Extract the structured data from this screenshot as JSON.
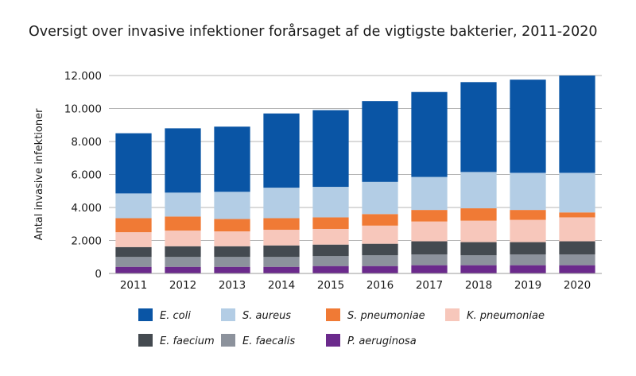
{
  "chart_data": {
    "type": "bar",
    "stacked": true,
    "title": "Oversigt over invasive infektioner forårsaget af de vigtigste bakterier, 2011-2020",
    "xlabel": "",
    "ylabel": "Antal invasive infektioner",
    "ylim": [
      0,
      12000
    ],
    "yticks": [
      0,
      2000,
      4000,
      6000,
      8000,
      10000,
      12000
    ],
    "ytick_labels": [
      "0",
      "2.000",
      "4.000",
      "6.000",
      "8.000",
      "10.000",
      "12.000"
    ],
    "grid": true,
    "legend_position": "bottom",
    "categories": [
      "2011",
      "2012",
      "2013",
      "2014",
      "2015",
      "2016",
      "2017",
      "2018",
      "2019",
      "2020"
    ],
    "series": [
      {
        "name": "P. aeruginosa",
        "color": "#6b2a8c",
        "values": [
          400,
          400,
          400,
          400,
          450,
          450,
          500,
          500,
          500,
          500
        ]
      },
      {
        "name": "E. faecalis",
        "color": "#8c929c",
        "values": [
          600,
          600,
          600,
          600,
          600,
          650,
          650,
          600,
          650,
          650
        ]
      },
      {
        "name": "E. faecium",
        "color": "#444a50",
        "values": [
          600,
          650,
          650,
          700,
          700,
          700,
          800,
          800,
          750,
          800
        ]
      },
      {
        "name": "K. pneumoniae",
        "color": "#f7c7bb",
        "values": [
          900,
          950,
          900,
          950,
          950,
          1100,
          1200,
          1300,
          1350,
          1450
        ]
      },
      {
        "name": "S. pneumoniae",
        "color": "#f07a35",
        "values": [
          850,
          850,
          750,
          700,
          700,
          700,
          700,
          750,
          600,
          300
        ]
      },
      {
        "name": "S. aureus",
        "color": "#b3cde5",
        "values": [
          1500,
          1450,
          1650,
          1850,
          1850,
          1950,
          2000,
          2200,
          2250,
          2400
        ]
      },
      {
        "name": "E. coli",
        "color": "#0a55a5",
        "values": [
          3650,
          3900,
          3950,
          4500,
          4650,
          4900,
          5150,
          5450,
          5650,
          5900
        ]
      }
    ],
    "legend_order": [
      "E. coli",
      "S. aureus",
      "S. pneumoniae",
      "K. pneumoniae",
      "E. faecium",
      "E. faecalis",
      "P. aeruginosa"
    ]
  }
}
